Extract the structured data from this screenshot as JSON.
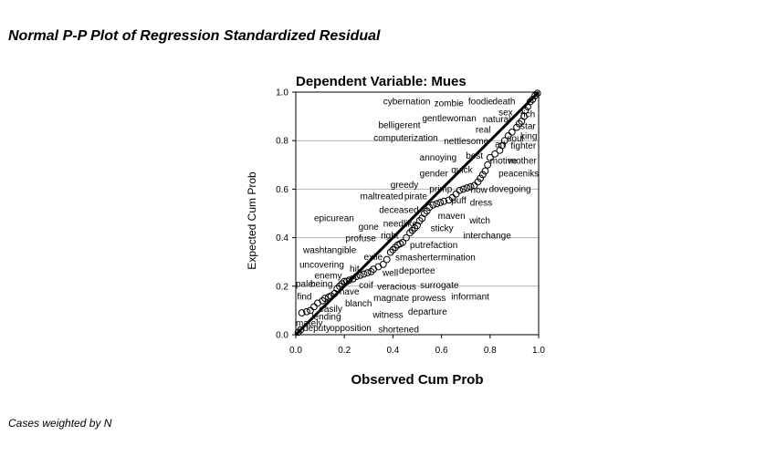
{
  "header": {
    "title": "Normal P-P Plot of Regression Standardized Residual"
  },
  "footer": {
    "note": "Cases weighted by N"
  },
  "chart_data": {
    "type": "scatter",
    "title": "Dependent Variable: Mues",
    "xlabel": "Observed Cum Prob",
    "ylabel": "Expected Cum Prob",
    "xlim": [
      0,
      1
    ],
    "ylim": [
      0,
      1
    ],
    "xticks": [
      "0.0",
      "0.2",
      "0.4",
      "0.6",
      "0.8",
      "1.0"
    ],
    "yticks": [
      "0.0",
      "0.2",
      "0.4",
      "0.6",
      "0.8",
      "1.0"
    ],
    "grid": "horizontal",
    "reference_line": [
      [
        0,
        0
      ],
      [
        1,
        1
      ]
    ],
    "points": [
      [
        0.01,
        0.01
      ],
      [
        0.02,
        0.02
      ],
      [
        0.025,
        0.09
      ],
      [
        0.045,
        0.095
      ],
      [
        0.06,
        0.1
      ],
      [
        0.075,
        0.115
      ],
      [
        0.09,
        0.13
      ],
      [
        0.11,
        0.14
      ],
      [
        0.12,
        0.15
      ],
      [
        0.135,
        0.155
      ],
      [
        0.145,
        0.16
      ],
      [
        0.16,
        0.17
      ],
      [
        0.17,
        0.19
      ],
      [
        0.18,
        0.2
      ],
      [
        0.19,
        0.21
      ],
      [
        0.2,
        0.22
      ],
      [
        0.21,
        0.22
      ],
      [
        0.22,
        0.225
      ],
      [
        0.235,
        0.23
      ],
      [
        0.25,
        0.24
      ],
      [
        0.265,
        0.245
      ],
      [
        0.28,
        0.25
      ],
      [
        0.295,
        0.255
      ],
      [
        0.31,
        0.26
      ],
      [
        0.32,
        0.27
      ],
      [
        0.34,
        0.28
      ],
      [
        0.36,
        0.29
      ],
      [
        0.375,
        0.31
      ],
      [
        0.39,
        0.34
      ],
      [
        0.4,
        0.35
      ],
      [
        0.41,
        0.36
      ],
      [
        0.42,
        0.37
      ],
      [
        0.43,
        0.375
      ],
      [
        0.44,
        0.38
      ],
      [
        0.455,
        0.4
      ],
      [
        0.47,
        0.42
      ],
      [
        0.48,
        0.43
      ],
      [
        0.49,
        0.44
      ],
      [
        0.5,
        0.45
      ],
      [
        0.51,
        0.47
      ],
      [
        0.52,
        0.48
      ],
      [
        0.53,
        0.5
      ],
      [
        0.54,
        0.51
      ],
      [
        0.55,
        0.525
      ],
      [
        0.565,
        0.535
      ],
      [
        0.58,
        0.54
      ],
      [
        0.595,
        0.545
      ],
      [
        0.61,
        0.55
      ],
      [
        0.63,
        0.555
      ],
      [
        0.645,
        0.565
      ],
      [
        0.66,
        0.58
      ],
      [
        0.675,
        0.595
      ],
      [
        0.69,
        0.6
      ],
      [
        0.705,
        0.605
      ],
      [
        0.72,
        0.61
      ],
      [
        0.735,
        0.615
      ],
      [
        0.75,
        0.63
      ],
      [
        0.76,
        0.645
      ],
      [
        0.77,
        0.66
      ],
      [
        0.78,
        0.675
      ],
      [
        0.79,
        0.7
      ],
      [
        0.8,
        0.73
      ],
      [
        0.82,
        0.745
      ],
      [
        0.84,
        0.76
      ],
      [
        0.85,
        0.78
      ],
      [
        0.86,
        0.8
      ],
      [
        0.875,
        0.82
      ],
      [
        0.89,
        0.835
      ],
      [
        0.91,
        0.855
      ],
      [
        0.92,
        0.87
      ],
      [
        0.93,
        0.88
      ],
      [
        0.94,
        0.9
      ],
      [
        0.945,
        0.925
      ],
      [
        0.955,
        0.94
      ],
      [
        0.965,
        0.96
      ],
      [
        0.975,
        0.97
      ],
      [
        0.985,
        0.985
      ],
      [
        0.995,
        0.995
      ]
    ],
    "point_labels": [
      {
        "text": "cybernation",
        "x": 0.36,
        "y": 0.962
      },
      {
        "text": "zombie",
        "x": 0.57,
        "y": 0.955
      },
      {
        "text": "foodie",
        "x": 0.71,
        "y": 0.962
      },
      {
        "text": "death",
        "x": 0.81,
        "y": 0.962
      },
      {
        "text": "sex",
        "x": 0.835,
        "y": 0.918
      },
      {
        "text": "rich",
        "x": 0.925,
        "y": 0.91
      },
      {
        "text": "gentlewoman",
        "x": 0.52,
        "y": 0.892
      },
      {
        "text": "natural",
        "x": 0.77,
        "y": 0.89
      },
      {
        "text": "belligerent",
        "x": 0.34,
        "y": 0.865
      },
      {
        "text": "star",
        "x": 0.925,
        "y": 0.86
      },
      {
        "text": "real",
        "x": 0.74,
        "y": 0.845
      },
      {
        "text": "king",
        "x": 0.925,
        "y": 0.82
      },
      {
        "text": "computerization",
        "x": 0.32,
        "y": 0.812
      },
      {
        "text": "soul",
        "x": 0.87,
        "y": 0.81
      },
      {
        "text": "nettlesome",
        "x": 0.61,
        "y": 0.798
      },
      {
        "text": "art",
        "x": 0.82,
        "y": 0.785
      },
      {
        "text": "fighter",
        "x": 0.885,
        "y": 0.78
      },
      {
        "text": "annoying",
        "x": 0.51,
        "y": 0.732
      },
      {
        "text": "best",
        "x": 0.7,
        "y": 0.738
      },
      {
        "text": "motive",
        "x": 0.8,
        "y": 0.718
      },
      {
        "text": "mother",
        "x": 0.875,
        "y": 0.718
      },
      {
        "text": "quick",
        "x": 0.64,
        "y": 0.68
      },
      {
        "text": "gender",
        "x": 0.51,
        "y": 0.665
      },
      {
        "text": "peaceniks",
        "x": 0.835,
        "y": 0.665
      },
      {
        "text": "greedy",
        "x": 0.39,
        "y": 0.618
      },
      {
        "text": "primp",
        "x": 0.55,
        "y": 0.602
      },
      {
        "text": "how",
        "x": 0.72,
        "y": 0.598
      },
      {
        "text": "dovegoing",
        "x": 0.795,
        "y": 0.602
      },
      {
        "text": "maltreated",
        "x": 0.265,
        "y": 0.572
      },
      {
        "text": "pirate",
        "x": 0.447,
        "y": 0.572
      },
      {
        "text": "puff",
        "x": 0.64,
        "y": 0.555
      },
      {
        "text": "dress",
        "x": 0.717,
        "y": 0.545
      },
      {
        "text": "deceased",
        "x": 0.343,
        "y": 0.515
      },
      {
        "text": "epicurean",
        "x": 0.075,
        "y": 0.482
      },
      {
        "text": "maven",
        "x": 0.585,
        "y": 0.49
      },
      {
        "text": "needlike",
        "x": 0.36,
        "y": 0.458
      },
      {
        "text": "witch",
        "x": 0.715,
        "y": 0.472
      },
      {
        "text": "gone",
        "x": 0.258,
        "y": 0.445
      },
      {
        "text": "sticky",
        "x": 0.555,
        "y": 0.44
      },
      {
        "text": "interchange",
        "x": 0.69,
        "y": 0.41
      },
      {
        "text": "profuse",
        "x": 0.205,
        "y": 0.398
      },
      {
        "text": "right",
        "x": 0.35,
        "y": 0.41
      },
      {
        "text": "putrefaction",
        "x": 0.47,
        "y": 0.37
      },
      {
        "text": "washtangible",
        "x": 0.03,
        "y": 0.35
      },
      {
        "text": "exile",
        "x": 0.28,
        "y": 0.322
      },
      {
        "text": "smashertermination",
        "x": 0.41,
        "y": 0.32
      },
      {
        "text": "uncovering",
        "x": 0.015,
        "y": 0.29
      },
      {
        "text": "hit",
        "x": 0.222,
        "y": 0.272
      },
      {
        "text": "deportee",
        "x": 0.425,
        "y": 0.265
      },
      {
        "text": "well",
        "x": 0.357,
        "y": 0.255
      },
      {
        "text": "enemy",
        "x": 0.077,
        "y": 0.245
      },
      {
        "text": "coif",
        "x": 0.26,
        "y": 0.205
      },
      {
        "text": "pale",
        "x": 0.0,
        "y": 0.21
      },
      {
        "text": "being",
        "x": 0.06,
        "y": 0.21
      },
      {
        "text": "veracious",
        "x": 0.335,
        "y": 0.2
      },
      {
        "text": "surrogate",
        "x": 0.512,
        "y": 0.205
      },
      {
        "text": "have",
        "x": 0.18,
        "y": 0.178
      },
      {
        "text": "find",
        "x": 0.005,
        "y": 0.158
      },
      {
        "text": "informant",
        "x": 0.64,
        "y": 0.158
      },
      {
        "text": "magnate",
        "x": 0.32,
        "y": 0.152
      },
      {
        "text": "prowess",
        "x": 0.478,
        "y": 0.152
      },
      {
        "text": "blanch",
        "x": 0.203,
        "y": 0.13
      },
      {
        "text": "easily",
        "x": 0.095,
        "y": 0.108
      },
      {
        "text": "departure",
        "x": 0.462,
        "y": 0.095
      },
      {
        "text": "witness",
        "x": 0.317,
        "y": 0.082
      },
      {
        "text": "lending",
        "x": 0.065,
        "y": 0.075
      },
      {
        "text": "mately",
        "x": 0.0,
        "y": 0.048
      },
      {
        "text": "deputy",
        "x": 0.03,
        "y": 0.028
      },
      {
        "text": "opposition",
        "x": 0.14,
        "y": 0.028
      },
      {
        "text": "shortened",
        "x": 0.34,
        "y": 0.022
      }
    ]
  }
}
